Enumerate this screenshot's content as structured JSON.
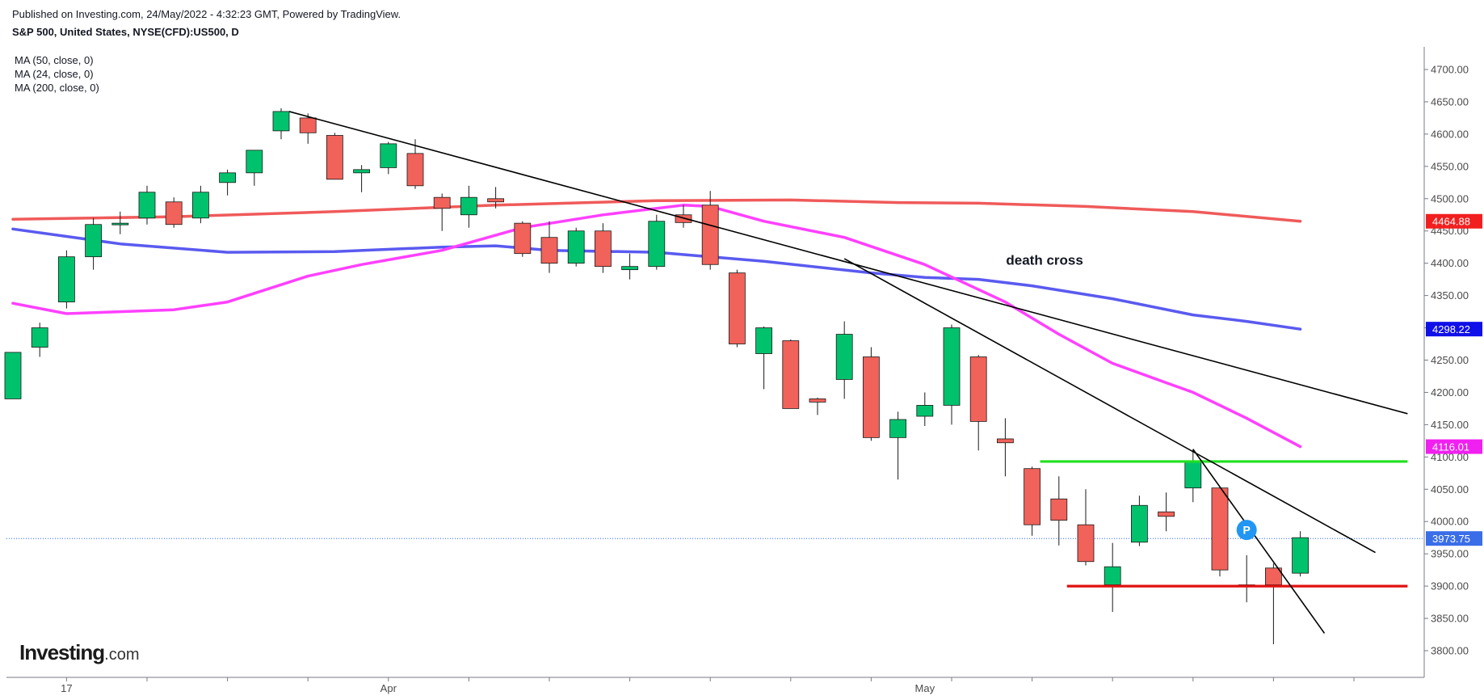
{
  "header": {
    "published": "Published on Investing.com, 24/May/2022 - 4:32:23 GMT, Powered by TradingView.",
    "symbol": "S&P 500, United States, NYSE(CFD):US500, D"
  },
  "indicators": [
    "MA (50, close, 0)",
    "MA (24, close, 0)",
    "MA (200, close, 0)"
  ],
  "logo": {
    "brand": "Investing",
    "suffix": ".com"
  },
  "chart_data": {
    "type": "candlestick",
    "y_axis": {
      "ticks": [
        "4700.00",
        "4650.00",
        "4600.00",
        "4550.00",
        "4500.00",
        "4450.00",
        "4400.00",
        "4350.00",
        "4300.00",
        "4250.00",
        "4200.00",
        "4150.00",
        "4100.00",
        "4050.00",
        "4000.00",
        "3950.00",
        "3900.00",
        "3850.00",
        "3800.00"
      ],
      "ylim": [
        3760,
        4740
      ],
      "position": "right"
    },
    "x_axis": {
      "labels": [
        {
          "i": 2,
          "text": "17"
        },
        {
          "i": 14,
          "text": "Apr"
        },
        {
          "i": 34,
          "text": "May"
        }
      ],
      "tick_every": 3,
      "tick_offset": 2
    },
    "candles": [
      [
        4190,
        4262,
        4190,
        4262
      ],
      [
        4270,
        4308,
        4255,
        4300
      ],
      [
        4340,
        4420,
        4330,
        4410
      ],
      [
        4410,
        4470,
        4390,
        4460
      ],
      [
        4462,
        4480,
        4445,
        4462
      ],
      [
        4470,
        4520,
        4460,
        4510
      ],
      [
        4495,
        4502,
        4455,
        4460
      ],
      [
        4470,
        4520,
        4462,
        4510
      ],
      [
        4525,
        4545,
        4505,
        4540
      ],
      [
        4540,
        4575,
        4520,
        4575
      ],
      [
        4605,
        4640,
        4592,
        4635
      ],
      [
        4625,
        4632,
        4585,
        4602
      ],
      [
        4598,
        4602,
        4530,
        4530
      ],
      [
        4540,
        4552,
        4510,
        4545
      ],
      [
        4548,
        4588,
        4538,
        4585
      ],
      [
        4570,
        4592,
        4515,
        4520
      ],
      [
        4502,
        4508,
        4450,
        4485
      ],
      [
        4475,
        4520,
        4455,
        4502
      ],
      [
        4500,
        4518,
        4485,
        4495
      ],
      [
        4462,
        4465,
        4410,
        4415
      ],
      [
        4440,
        4465,
        4385,
        4400
      ],
      [
        4400,
        4455,
        4395,
        4450
      ],
      [
        4450,
        4462,
        4385,
        4395
      ],
      [
        4390,
        4415,
        4375,
        4395
      ],
      [
        4395,
        4475,
        4390,
        4465
      ],
      [
        4475,
        4490,
        4455,
        4463
      ],
      [
        4490,
        4512,
        4390,
        4398
      ],
      [
        4385,
        4390,
        4270,
        4275
      ],
      [
        4260,
        4302,
        4205,
        4300
      ],
      [
        4280,
        4282,
        4175,
        4175
      ],
      [
        4190,
        4192,
        4165,
        4185
      ],
      [
        4220,
        4310,
        4190,
        4290
      ],
      [
        4255,
        4270,
        4125,
        4130
      ],
      [
        4130,
        4170,
        4065,
        4158
      ],
      [
        4163,
        4200,
        4148,
        4180
      ],
      [
        4180,
        4305,
        4150,
        4300
      ],
      [
        4255,
        4258,
        4110,
        4155
      ],
      [
        4128,
        4160,
        4070,
        4122
      ],
      [
        4082,
        4085,
        3978,
        3995
      ],
      [
        4035,
        4070,
        3963,
        4002
      ],
      [
        3995,
        4050,
        3932,
        3938
      ],
      [
        3902,
        3967,
        3860,
        3930
      ],
      [
        3968,
        4040,
        3962,
        4025
      ],
      [
        4015,
        4045,
        3985,
        4008
      ],
      [
        4052,
        4112,
        4030,
        4092
      ],
      [
        4052,
        4054,
        3915,
        3925
      ],
      [
        3900,
        3948,
        3875,
        3902
      ],
      [
        3928,
        3935,
        3810,
        3902
      ],
      [
        3920,
        3985,
        3915,
        3975
      ]
    ],
    "moving_averages": [
      {
        "name": "MA (200, close, 0)",
        "color": "#f05a5a",
        "label": "4464.88",
        "points": [
          [
            0,
            4468
          ],
          [
            6,
            4472
          ],
          [
            12,
            4480
          ],
          [
            18,
            4490
          ],
          [
            24,
            4497
          ],
          [
            29,
            4498
          ],
          [
            33,
            4494
          ],
          [
            36,
            4493
          ],
          [
            40,
            4488
          ],
          [
            44,
            4480
          ],
          [
            48,
            4465
          ]
        ]
      },
      {
        "name": "MA (50, close, 0)",
        "color": "#5a5af0",
        "label": "4298.22",
        "points": [
          [
            0,
            4453
          ],
          [
            4,
            4430
          ],
          [
            8,
            4417
          ],
          [
            12,
            4418
          ],
          [
            16,
            4425
          ],
          [
            18,
            4427
          ],
          [
            20,
            4420
          ],
          [
            24,
            4417
          ],
          [
            26,
            4410
          ],
          [
            28,
            4403
          ],
          [
            32,
            4385
          ],
          [
            34,
            4378
          ],
          [
            36,
            4375
          ],
          [
            38,
            4365
          ],
          [
            41,
            4345
          ],
          [
            44,
            4320
          ],
          [
            46,
            4310
          ],
          [
            48,
            4298
          ]
        ]
      },
      {
        "name": "MA (24, close, 0)",
        "color": "#ff40ff",
        "label": "4116.01",
        "points": [
          [
            0,
            4338
          ],
          [
            2,
            4322
          ],
          [
            6,
            4328
          ],
          [
            8,
            4340
          ],
          [
            11,
            4380
          ],
          [
            13,
            4398
          ],
          [
            16,
            4420
          ],
          [
            19,
            4455
          ],
          [
            22,
            4475
          ],
          [
            25,
            4490
          ],
          [
            26,
            4488
          ],
          [
            28,
            4465
          ],
          [
            31,
            4440
          ],
          [
            34,
            4398
          ],
          [
            37,
            4340
          ],
          [
            39,
            4290
          ],
          [
            41,
            4245
          ],
          [
            43,
            4215
          ],
          [
            44,
            4200
          ],
          [
            46,
            4160
          ],
          [
            48,
            4116
          ]
        ]
      }
    ],
    "current_price": {
      "value": 3973.75,
      "label": "3973.75",
      "color": "#2962ff"
    },
    "trendlines": [
      {
        "from": [
          10.3,
          4635
        ],
        "to": [
          52,
          4167
        ],
        "color": "#000000"
      },
      {
        "from": [
          31,
          4407
        ],
        "to": [
          50.8,
          3952
        ],
        "color": "#000000"
      },
      {
        "from": [
          44,
          4112
        ],
        "to": [
          48.9,
          3827
        ],
        "color": "#000000"
      }
    ],
    "horizontal_levels": [
      {
        "value": 4093,
        "from": 38.3,
        "to": 52,
        "color": "#1fe01f"
      },
      {
        "value": 3900,
        "from": 39.3,
        "to": 52,
        "color": "#e01010"
      }
    ],
    "annotations": [
      {
        "text": "death cross",
        "i": 37,
        "y": 4400
      },
      {
        "marker": "P",
        "i": 46,
        "y": 3987,
        "color": "#2196f3"
      }
    ],
    "colors": {
      "up": "#00c26d",
      "down": "#f0625a",
      "axis": "#787b86"
    }
  }
}
